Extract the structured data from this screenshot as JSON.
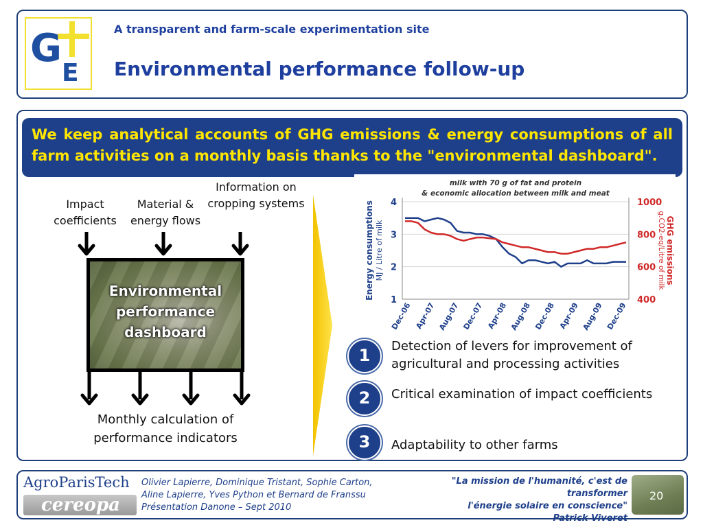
{
  "header": {
    "subtitle": "A transparent and farm-scale experimentation site",
    "title": "Environmental performance follow-up",
    "logo_text": "G+E"
  },
  "banner": {
    "text": "We keep analytical accounts of GHG emissions & energy consumptions of all farm activities on a monthly basis thanks to the \"environmental dashboard\"."
  },
  "diagram": {
    "inputs": {
      "impact": "Impact coefficients",
      "material": "Material & energy flows",
      "information": "Information on cropping systems"
    },
    "dashboard_label": "Environmental performance dashboard",
    "output_label": "Monthly calculation of performance indicators"
  },
  "chart_data": {
    "type": "line",
    "title": "milk with 70 g of fat and protein & economic allocation between milk and meat",
    "x_ticks": [
      "Dec-06",
      "Apr-07",
      "Aug-07",
      "Dec-07",
      "Apr-08",
      "Aug-08",
      "Dec-08",
      "Apr-09",
      "Aug-09",
      "Dec-09"
    ],
    "y_left_label_main": "Energy consumptions",
    "y_left_label_unit": "MJ / Litre of milk",
    "y_left_ticks": [
      "1",
      "2",
      "3",
      "4"
    ],
    "y_left_range": [
      1,
      4
    ],
    "y_right_label_main": "GHG emissions",
    "y_right_label_unit": "g.CO2-eq/Litre of milk",
    "y_right_ticks": [
      "400",
      "600",
      "800",
      "1000"
    ],
    "y_right_range": [
      400,
      1000
    ],
    "grid": "horizontal",
    "series": [
      {
        "axis": "left",
        "color": "#1e3f8a",
        "values": [
          3.5,
          3.5,
          3.5,
          3.4,
          3.45,
          3.5,
          3.45,
          3.35,
          3.1,
          3.05,
          3.05,
          3.0,
          3.0,
          2.95,
          2.85,
          2.6,
          2.4,
          2.3,
          2.1,
          2.2,
          2.2,
          2.15,
          2.1,
          2.15,
          2.0,
          2.1,
          2.1,
          2.1,
          2.2,
          2.1,
          2.1,
          2.1,
          2.15,
          2.15,
          2.15
        ]
      },
      {
        "axis": "right",
        "color": "#d02828",
        "values": [
          880,
          880,
          870,
          830,
          810,
          800,
          800,
          790,
          770,
          760,
          770,
          780,
          780,
          775,
          770,
          750,
          740,
          730,
          720,
          720,
          710,
          700,
          690,
          690,
          680,
          680,
          690,
          700,
          710,
          710,
          720,
          720,
          730,
          740,
          750
        ]
      }
    ]
  },
  "points": [
    {
      "number": "1",
      "text": "Detection of levers for improvement of agricultural and processing activities"
    },
    {
      "number": "2",
      "text": "Critical examination of impact coefficients"
    },
    {
      "number": "3",
      "text": "Adaptability to other farms"
    }
  ],
  "footer": {
    "logo_agro": "AgroParisTech",
    "logo_cereopa": "cereopa",
    "authors_line1": "Olivier Lapierre, Dominique Tristant, Sophie Carton,",
    "authors_line2": "Aline Lapierre, Yves Python et Bernard de Franssu",
    "authors_line3": "Présentation Danone – Sept 2010",
    "quote_line1": "\"La mission de l'humanité, c'est de transformer",
    "quote_line2": "l'énergie solaire en conscience\"",
    "quote_author": "Patrick Viveret",
    "page_number": "20"
  }
}
